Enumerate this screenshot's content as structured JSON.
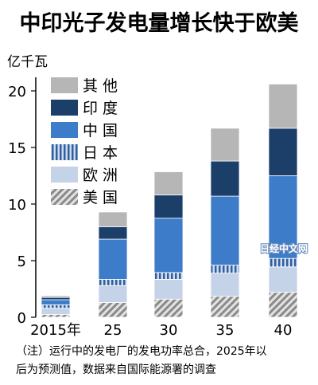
{
  "chart_data": {
    "type": "bar",
    "stacked": true,
    "title": "中印光子发电量增长快于欧美",
    "ylabel": "亿千瓦",
    "xlabel": "",
    "categories": [
      "2015年",
      "25",
      "30",
      "35",
      "40"
    ],
    "ylim": [
      0,
      21
    ],
    "yticks": [
      0,
      5,
      10,
      15,
      20
    ],
    "grid": false,
    "legend_position": "top-left",
    "series": [
      {
        "name": "美 国",
        "pattern": "diagonal-hatch",
        "color": "#9a9a9a",
        "values": [
          0.25,
          1.3,
          1.6,
          1.85,
          2.2
        ]
      },
      {
        "name": "欧 洲",
        "pattern": "solid",
        "color": "#c5d3e8",
        "values": [
          0.55,
          1.5,
          1.75,
          2.05,
          2.25
        ]
      },
      {
        "name": "日 本",
        "pattern": "vertical-stripe",
        "color": "#3f73b9",
        "values": [
          0.3,
          0.55,
          0.6,
          0.7,
          0.75
        ]
      },
      {
        "name": "中 国",
        "pattern": "solid",
        "color": "#3d7cc9",
        "values": [
          0.45,
          3.55,
          4.8,
          6.1,
          7.3
        ]
      },
      {
        "name": "印 度",
        "pattern": "solid",
        "color": "#1b3f69",
        "values": [
          0.2,
          1.1,
          2.05,
          3.1,
          4.2
        ]
      },
      {
        "name": "其 他",
        "pattern": "solid",
        "color": "#b6b6b6",
        "values": [
          0.15,
          1.3,
          2.05,
          2.9,
          3.9
        ]
      }
    ],
    "watermark": "日经中文网",
    "note_lines": [
      "（注）运行中的发电厂的发电功率总合，2025年以",
      "后为预测值，数据来自国际能源署的调查"
    ]
  }
}
